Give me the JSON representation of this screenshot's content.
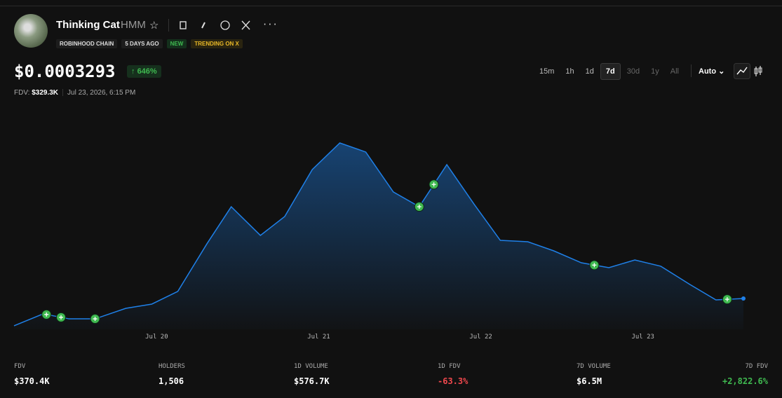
{
  "header": {
    "name": "Thinking Cat",
    "ticker": "HMM",
    "badges": [
      "ROBINHOOD CHAIN",
      "5 DAYS AGO",
      "NEW",
      "TRENDING ON X"
    ]
  },
  "price": {
    "value": "$0.0003293",
    "change": "646%",
    "fdv_label": "FDV:",
    "fdv": "$329.3K",
    "timestamp": "Jul 23, 2026, 6:15 PM"
  },
  "timeframes": [
    "15m",
    "1h",
    "1d",
    "7d",
    "30d",
    "1y",
    "All"
  ],
  "active_timeframe": "7d",
  "scale_mode": "Auto",
  "chart_data": {
    "type": "line",
    "color": "#1f80e8",
    "x": [
      19.12,
      19.3,
      19.46,
      19.62,
      19.81,
      19.97,
      20.13,
      20.31,
      20.46,
      20.64,
      20.79,
      20.96,
      21.13,
      21.29,
      21.46,
      21.62,
      21.79,
      21.96,
      22.12,
      22.29,
      22.45,
      22.62,
      22.79,
      22.95,
      23.11,
      23.29,
      23.45,
      23.62
    ],
    "values": [
      11,
      150,
      92,
      92,
      215,
      264,
      411,
      966,
      1398,
      1064,
      1284,
      1831,
      2141,
      2035,
      1570,
      1398,
      1888,
      1423,
      1006,
      990,
      884,
      745,
      688,
      778,
      705,
      492,
      313,
      329.3
    ],
    "xlim": [
      19.12,
      23.62
    ],
    "ylim": [
      -30,
      2500
    ],
    "xticks": [
      {
        "value": 20,
        "label": "Jul 20"
      },
      {
        "value": 21,
        "label": "Jul 21"
      },
      {
        "value": 22,
        "label": "Jul 22"
      },
      {
        "value": 23,
        "label": "Jul 23"
      }
    ],
    "markers": {
      "color": "#3fb950",
      "x": [
        19.32,
        19.41,
        19.62,
        21.62,
        21.71,
        22.7,
        23.52
      ]
    }
  },
  "stats": [
    {
      "label": "FDV",
      "value": "$370.4K",
      "color": "#ffffff"
    },
    {
      "label": "HOLDERS",
      "value": "1,506",
      "color": "#ffffff"
    },
    {
      "label": "1D VOLUME",
      "value": "$576.7K",
      "color": "#ffffff"
    },
    {
      "label": "1D FDV",
      "value": "-63.3%",
      "color": "#f0484d"
    },
    {
      "label": "7D VOLUME",
      "value": "$6.5M",
      "color": "#ffffff"
    },
    {
      "label": "7D FDV",
      "value": "+2,822.6%",
      "color": "#3fb950"
    }
  ]
}
